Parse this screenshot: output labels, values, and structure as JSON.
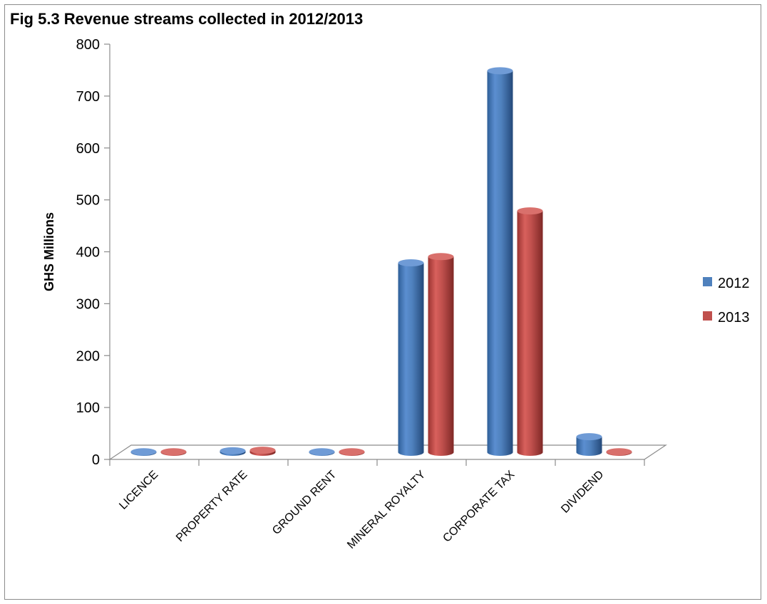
{
  "chart_data": {
    "type": "bar",
    "title": "Fig  5.3 Revenue streams collected in 2012/2013",
    "ylabel": "GHS Millions",
    "xlabel": "",
    "ylim": [
      0,
      800
    ],
    "yticks": [
      0,
      100,
      200,
      300,
      400,
      500,
      600,
      700,
      800
    ],
    "categories": [
      "LICENCE",
      "PROPERTY RATE",
      "GROUND RENT",
      "MINERAL ROYALTY",
      "CORPORATE TAX",
      "DIVIDEND"
    ],
    "series": [
      {
        "name": "2012",
        "color": "#4f81bd",
        "values": [
          1,
          3,
          1,
          365,
          735,
          30
        ]
      },
      {
        "name": "2013",
        "color": "#c0504d",
        "values": [
          1,
          4,
          1,
          377,
          465,
          1
        ]
      }
    ],
    "legend": "right",
    "grid": false,
    "style": "3d-cylinder"
  }
}
